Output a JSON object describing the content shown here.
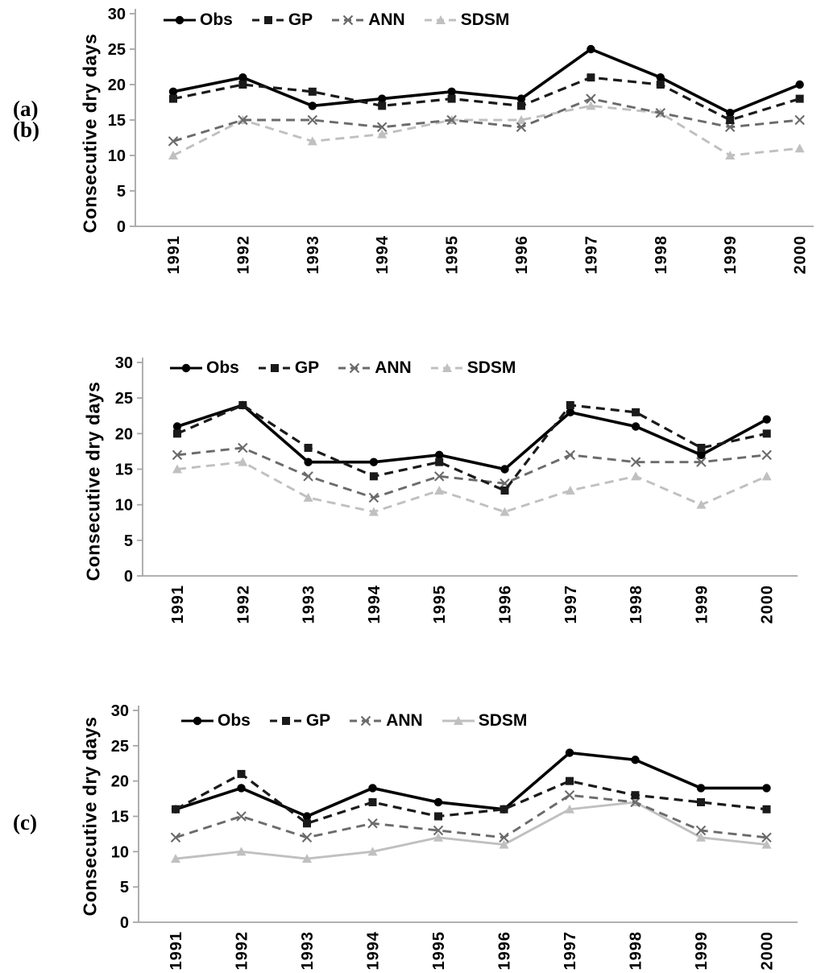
{
  "figure": {
    "y_axis_title": "Consecutive dry days",
    "panels": [
      {
        "label": "(a)"
      },
      {
        "label": "(b)"
      },
      {
        "label": "(c)"
      }
    ]
  },
  "chart_data": [
    {
      "panel_label": "(a)",
      "type": "line",
      "title": "",
      "xlabel": "",
      "ylabel": "Consecutive dry days",
      "ylim": [
        0,
        30
      ],
      "yticks": [
        0,
        5,
        10,
        15,
        20,
        25,
        30
      ],
      "grid": false,
      "legend_position": "top-inside",
      "categories": [
        "1991",
        "1992",
        "1993",
        "1994",
        "1995",
        "1996",
        "1997",
        "1998",
        "1999",
        "2000"
      ],
      "series": [
        {
          "name": "Obs",
          "marker": "circle",
          "line": "solid",
          "color": "#000000",
          "values": [
            19,
            21,
            17,
            18,
            19,
            18,
            25,
            21,
            16,
            20
          ]
        },
        {
          "name": "GP",
          "marker": "square",
          "line": "dashed",
          "color": "#1a1a1a",
          "values": [
            18,
            20,
            19,
            17,
            18,
            17,
            21,
            20,
            15,
            18
          ]
        },
        {
          "name": "ANN",
          "marker": "x",
          "line": "dashed",
          "color": "#6b6b6b",
          "values": [
            12,
            15,
            15,
            14,
            15,
            14,
            18,
            16,
            14,
            15
          ]
        },
        {
          "name": "SDSM",
          "marker": "triangle",
          "line": "dashed",
          "color": "#c0c0c0",
          "values": [
            10,
            15,
            12,
            13,
            15,
            15,
            17,
            16,
            10,
            11
          ]
        }
      ]
    },
    {
      "panel_label": "(b)",
      "type": "line",
      "title": "",
      "xlabel": "",
      "ylabel": "Consecutive dry days",
      "ylim": [
        0,
        30
      ],
      "yticks": [
        0,
        5,
        10,
        15,
        20,
        25,
        30
      ],
      "grid": false,
      "legend_position": "top-inside",
      "categories": [
        "1991",
        "1992",
        "1993",
        "1994",
        "1995",
        "1996",
        "1997",
        "1998",
        "1999",
        "2000"
      ],
      "series": [
        {
          "name": "Obs",
          "marker": "circle",
          "line": "solid",
          "color": "#000000",
          "values": [
            21,
            24,
            16,
            16,
            17,
            15,
            23,
            21,
            17,
            22
          ]
        },
        {
          "name": "GP",
          "marker": "square",
          "line": "dashed",
          "color": "#1a1a1a",
          "values": [
            20,
            24,
            18,
            14,
            16,
            12,
            24,
            23,
            18,
            20
          ]
        },
        {
          "name": "ANN",
          "marker": "x",
          "line": "dashed",
          "color": "#6b6b6b",
          "values": [
            17,
            18,
            14,
            11,
            14,
            13,
            17,
            16,
            16,
            17
          ]
        },
        {
          "name": "SDSM",
          "marker": "triangle",
          "line": "dashed",
          "color": "#c0c0c0",
          "values": [
            15,
            16,
            11,
            9,
            12,
            9,
            12,
            14,
            10,
            14
          ]
        }
      ]
    },
    {
      "panel_label": "(c)",
      "type": "line",
      "title": "",
      "xlabel": "",
      "ylabel": "Consecutive dry days",
      "ylim": [
        0,
        30
      ],
      "yticks": [
        0,
        5,
        10,
        15,
        20,
        25,
        30
      ],
      "grid": false,
      "legend_position": "top-inside",
      "categories": [
        "1991",
        "1992",
        "1993",
        "1994",
        "1995",
        "1996",
        "1997",
        "1998",
        "1999",
        "2000"
      ],
      "series": [
        {
          "name": "Obs",
          "marker": "circle",
          "line": "solid",
          "color": "#000000",
          "values": [
            16,
            19,
            15,
            19,
            17,
            16,
            24,
            23,
            19,
            19
          ]
        },
        {
          "name": "GP",
          "marker": "square",
          "line": "dashed",
          "color": "#1a1a1a",
          "values": [
            16,
            21,
            14,
            17,
            15,
            16,
            20,
            18,
            17,
            16
          ]
        },
        {
          "name": "ANN",
          "marker": "x",
          "line": "dashed",
          "color": "#6b6b6b",
          "values": [
            12,
            15,
            12,
            14,
            13,
            12,
            18,
            17,
            13,
            12
          ]
        },
        {
          "name": "SDSM",
          "marker": "triangle",
          "line": "solid",
          "color": "#c0c0c0",
          "values": [
            9,
            10,
            9,
            10,
            12,
            11,
            16,
            17,
            12,
            11
          ]
        }
      ]
    }
  ]
}
